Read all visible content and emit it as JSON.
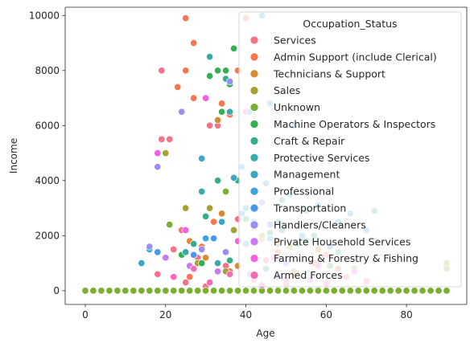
{
  "chart_data": {
    "type": "scatter",
    "xlabel": "Age",
    "ylabel": "Income",
    "xlim": [
      -5,
      95
    ],
    "ylim": [
      -500,
      10300
    ],
    "x_ticks": [
      0,
      20,
      40,
      60,
      80
    ],
    "y_ticks": [
      0,
      2000,
      4000,
      6000,
      8000,
      10000
    ],
    "grid": false,
    "legend": {
      "title": "Occupation_Status",
      "placement": "upper right"
    },
    "series": [
      {
        "name": "Services",
        "color": "#f77189",
        "points": [
          [
            19,
            8000
          ],
          [
            19,
            5500
          ],
          [
            21,
            5500
          ],
          [
            31,
            6000
          ],
          [
            33,
            6000
          ],
          [
            40,
            6500
          ],
          [
            22,
            1500
          ],
          [
            28,
            1200
          ],
          [
            35,
            900
          ],
          [
            45,
            1100
          ],
          [
            52,
            700
          ],
          [
            60,
            1300
          ],
          [
            18,
            600
          ],
          [
            25,
            300
          ],
          [
            30,
            150
          ],
          [
            42,
            400
          ],
          [
            50,
            250
          ],
          [
            65,
            500
          ],
          [
            70,
            300
          ],
          [
            24,
            2200
          ],
          [
            38,
            2600
          ],
          [
            55,
            1800
          ]
        ]
      },
      {
        "name": "Admin Support (include Clerical)",
        "color": "#f7754f",
        "points": [
          [
            25,
            9900
          ],
          [
            27,
            9000
          ],
          [
            25,
            8000
          ],
          [
            23,
            7400
          ],
          [
            27,
            7000
          ],
          [
            34,
            6800
          ],
          [
            36,
            6400
          ],
          [
            38,
            8000
          ],
          [
            40,
            9900
          ],
          [
            32,
            2500
          ],
          [
            44,
            1900
          ],
          [
            29,
            1600
          ],
          [
            48,
            1400
          ],
          [
            57,
            1000
          ],
          [
            63,
            800
          ],
          [
            36,
            700
          ],
          [
            26,
            500
          ]
        ]
      },
      {
        "name": "Technicians & Support",
        "color": "#d58c32",
        "points": [
          [
            33,
            6200
          ],
          [
            26,
            1800
          ],
          [
            34,
            2800
          ],
          [
            42,
            2300
          ],
          [
            48,
            1700
          ],
          [
            58,
            1500
          ],
          [
            30,
            1200
          ],
          [
            38,
            900
          ],
          [
            52,
            600
          ]
        ]
      },
      {
        "name": "Sales",
        "color": "#a4a031",
        "points": [
          [
            20,
            5000
          ],
          [
            25,
            3000
          ],
          [
            31,
            3000
          ],
          [
            37,
            2200
          ],
          [
            44,
            2000
          ],
          [
            51,
            1600
          ],
          [
            59,
            1200
          ],
          [
            67,
            800
          ],
          [
            28,
            1000
          ],
          [
            35,
            700
          ]
        ]
      },
      {
        "name": "Unknown",
        "color": "#7aaf31",
        "points": [
          [
            0,
            0
          ],
          [
            2,
            0
          ],
          [
            4,
            0
          ],
          [
            6,
            0
          ],
          [
            8,
            0
          ],
          [
            10,
            0
          ],
          [
            12,
            0
          ],
          [
            14,
            0
          ],
          [
            16,
            0
          ],
          [
            18,
            0
          ],
          [
            20,
            0
          ],
          [
            22,
            0
          ],
          [
            24,
            0
          ],
          [
            26,
            0
          ],
          [
            28,
            0
          ],
          [
            30,
            0
          ],
          [
            32,
            0
          ],
          [
            34,
            0
          ],
          [
            36,
            0
          ],
          [
            38,
            0
          ],
          [
            40,
            0
          ],
          [
            42,
            0
          ],
          [
            44,
            0
          ],
          [
            46,
            0
          ],
          [
            48,
            0
          ],
          [
            50,
            0
          ],
          [
            52,
            0
          ],
          [
            54,
            0
          ],
          [
            56,
            0
          ],
          [
            58,
            0
          ],
          [
            60,
            0
          ],
          [
            62,
            0
          ],
          [
            64,
            0
          ],
          [
            66,
            0
          ],
          [
            68,
            0
          ],
          [
            70,
            0
          ],
          [
            72,
            0
          ],
          [
            74,
            0
          ],
          [
            76,
            0
          ],
          [
            78,
            0
          ],
          [
            80,
            0
          ],
          [
            82,
            0
          ],
          [
            84,
            0
          ],
          [
            86,
            0
          ],
          [
            88,
            0
          ],
          [
            90,
            0
          ],
          [
            90,
            1000
          ],
          [
            90,
            800
          ],
          [
            35,
            3600
          ],
          [
            21,
            2400
          ]
        ]
      },
      {
        "name": "Machine Operators & Inspectors",
        "color": "#33b04f",
        "points": [
          [
            33,
            8000
          ],
          [
            35,
            8000
          ],
          [
            34,
            6500
          ],
          [
            36,
            7500
          ],
          [
            37,
            8800
          ],
          [
            31,
            7800
          ],
          [
            40,
            2600
          ],
          [
            46,
            2100
          ],
          [
            53,
            1700
          ],
          [
            24,
            1300
          ],
          [
            29,
            1000
          ],
          [
            61,
            900
          ]
        ]
      },
      {
        "name": "Craft & Repair",
        "color": "#36ad8a",
        "points": [
          [
            35,
            7700
          ],
          [
            33,
            4000
          ],
          [
            38,
            4000
          ],
          [
            30,
            2700
          ],
          [
            42,
            2500
          ],
          [
            49,
            2200
          ],
          [
            55,
            1800
          ],
          [
            63,
            1400
          ],
          [
            27,
            1700
          ],
          [
            36,
            1100
          ],
          [
            45,
            800
          ]
        ]
      },
      {
        "name": "Protective Services",
        "color": "#38aaac",
        "points": [
          [
            31,
            8500
          ],
          [
            36,
            6500
          ],
          [
            29,
            3600
          ],
          [
            40,
            3000
          ],
          [
            48,
            2500
          ],
          [
            57,
            2000
          ],
          [
            72,
            2900
          ],
          [
            25,
            1400
          ],
          [
            33,
            1000
          ]
        ]
      },
      {
        "name": "Management",
        "color": "#3aa7c4",
        "points": [
          [
            44,
            10000
          ],
          [
            29,
            4800
          ],
          [
            37,
            4100
          ],
          [
            42,
            3600
          ],
          [
            49,
            3300
          ],
          [
            55,
            2900
          ],
          [
            63,
            2500
          ],
          [
            70,
            2200
          ],
          [
            16,
            1500
          ],
          [
            14,
            1000
          ],
          [
            34,
            2500
          ],
          [
            46,
            1900
          ]
        ]
      },
      {
        "name": "Professional",
        "color": "#3ca4da",
        "points": [
          [
            41,
            6500
          ],
          [
            46,
            6800
          ],
          [
            52,
            6000
          ],
          [
            39,
            4500
          ],
          [
            45,
            3900
          ],
          [
            51,
            3500
          ],
          [
            58,
            3100
          ],
          [
            66,
            2800
          ],
          [
            30,
            1900
          ],
          [
            40,
            1700
          ]
        ]
      },
      {
        "name": "Transportation",
        "color": "#4a98ec",
        "points": [
          [
            39,
            2800
          ],
          [
            46,
            2400
          ],
          [
            54,
            2000
          ],
          [
            61,
            1600
          ],
          [
            32,
            1900
          ],
          [
            18,
            1400
          ],
          [
            27,
            1300
          ]
        ]
      },
      {
        "name": "Handlers/Cleaners",
        "color": "#978ff2",
        "points": [
          [
            18,
            4500
          ],
          [
            36,
            7600
          ],
          [
            44,
            3200
          ],
          [
            24,
            6500
          ],
          [
            29,
            1500
          ],
          [
            16,
            1600
          ],
          [
            35,
            1400
          ],
          [
            50,
            1000
          ]
        ]
      },
      {
        "name": "Private Household Services",
        "color": "#c879f3",
        "points": [
          [
            20,
            1200
          ],
          [
            26,
            900
          ],
          [
            33,
            700
          ],
          [
            41,
            600
          ],
          [
            48,
            500
          ],
          [
            56,
            400
          ]
        ]
      },
      {
        "name": "Farming & Forestry & Fishing",
        "color": "#f161e0",
        "points": [
          [
            18,
            5000
          ],
          [
            30,
            7000
          ],
          [
            25,
            2200
          ],
          [
            38,
            1800
          ],
          [
            47,
            1200
          ],
          [
            58,
            900
          ],
          [
            67,
            700
          ]
        ]
      },
      {
        "name": "Armed Forces",
        "color": "#f66bb4",
        "points": [
          [
            22,
            500
          ],
          [
            27,
            800
          ],
          [
            31,
            300
          ],
          [
            36,
            600
          ],
          [
            44,
            200
          ],
          [
            50,
            400
          ],
          [
            60,
            250
          ],
          [
            70,
            350
          ]
        ]
      }
    ]
  }
}
